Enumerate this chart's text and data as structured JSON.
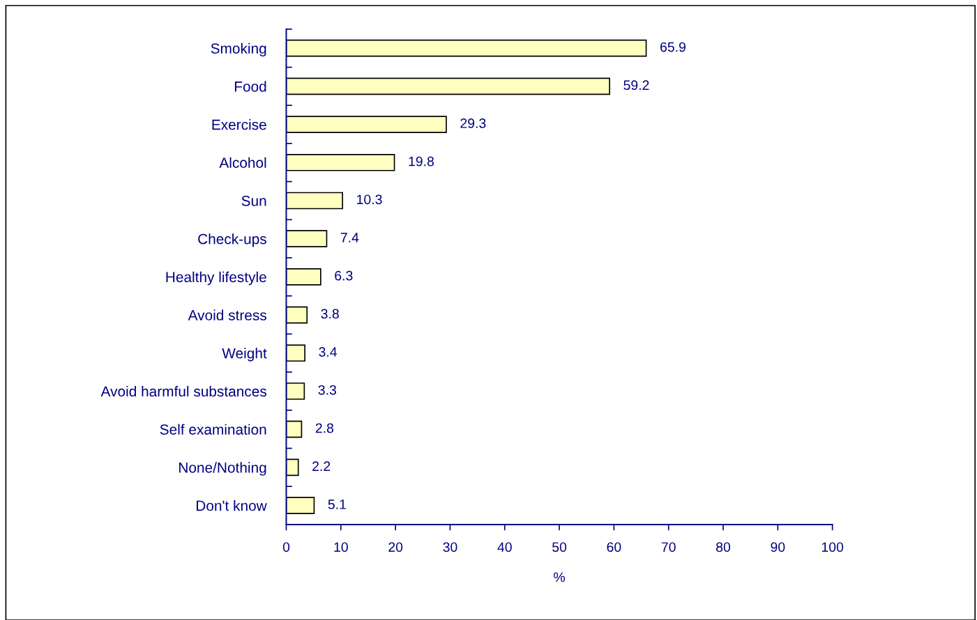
{
  "chart_data": {
    "type": "bar",
    "orientation": "horizontal",
    "xlabel": "%",
    "categories": [
      "Smoking",
      "Food",
      "Exercise",
      "Alcohol",
      "Sun",
      "Check-ups",
      "Healthy lifestyle",
      "Avoid stress",
      "Weight",
      "Avoid harmful substances",
      "Self examination",
      "None/Nothing",
      "Don't know"
    ],
    "values": [
      65.9,
      59.2,
      29.3,
      19.8,
      10.3,
      7.4,
      6.3,
      3.8,
      3.4,
      3.3,
      2.8,
      2.2,
      5.1
    ],
    "color": "#ffffc0",
    "xlim": [
      0,
      100
    ],
    "xticks": [
      0,
      10,
      20,
      30,
      40,
      50,
      60,
      70,
      80,
      90,
      100
    ],
    "data_labels": true,
    "grid": false,
    "legend": false
  }
}
